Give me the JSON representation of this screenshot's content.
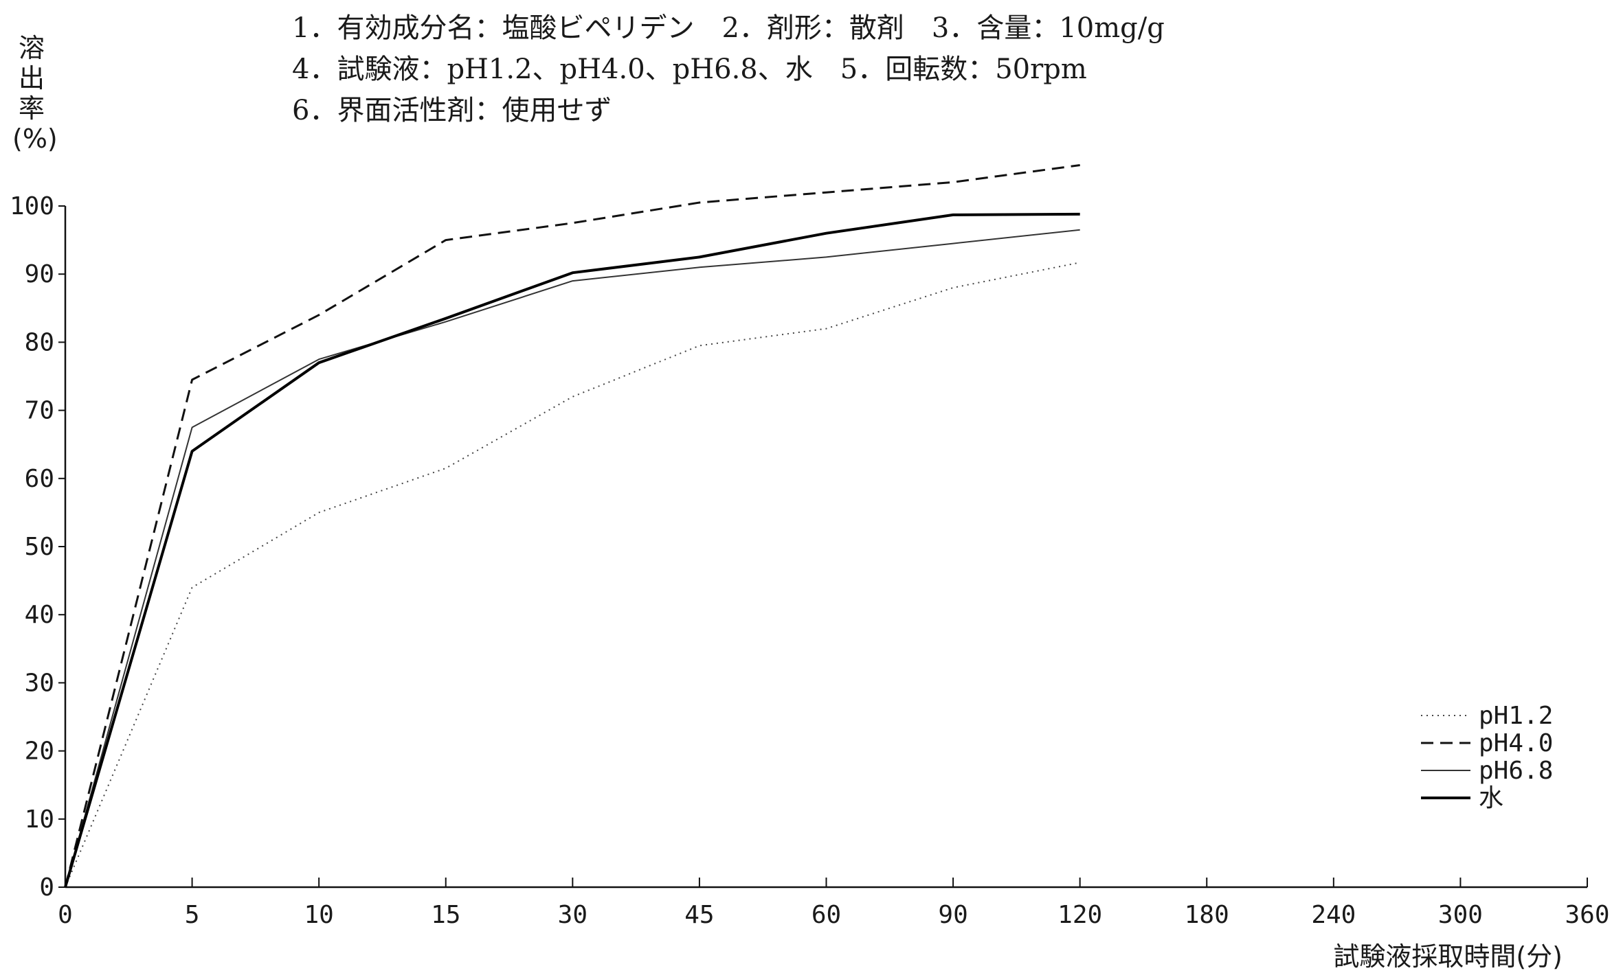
{
  "header": {
    "line1": "1．有効成分名：塩酸ビペリデン　2．剤形：散剤　3．含量：10mg/g",
    "line2": "4．試験液：pH1.2、pH4.0、pH6.8、水　5．回転数：50rpm",
    "line3": "6．界面活性剤：使用せず"
  },
  "chart_data": {
    "type": "line",
    "title": "",
    "ylabel": [
      "溶",
      "出",
      "率",
      "(%)"
    ],
    "xlabel": "試験液採取時間(分)",
    "x_categories": [
      "0",
      "5",
      "10",
      "15",
      "30",
      "45",
      "60",
      "90",
      "120",
      "180",
      "240",
      "300",
      "360"
    ],
    "y_ticks": [
      0,
      10,
      20,
      30,
      40,
      50,
      60,
      70,
      80,
      90,
      100
    ],
    "ylim": [
      0,
      100
    ],
    "grid": false,
    "legend_position": "bottom-right",
    "series": [
      {
        "name": "pH1.2",
        "style": "dotted",
        "stroke_color": "#444444",
        "values": [
          0,
          44,
          55,
          61.5,
          72,
          79.5,
          82,
          88,
          91.7
        ]
      },
      {
        "name": "pH4.0",
        "style": "dashed",
        "stroke_color": "#111111",
        "values": [
          0,
          74.5,
          84,
          95,
          97.5,
          100.5,
          102,
          103.5,
          106
        ]
      },
      {
        "name": "pH6.8",
        "style": "thin",
        "stroke_color": "#333333",
        "values": [
          0,
          67.5,
          77.5,
          83,
          89,
          91,
          92.5,
          94.5,
          96.5
        ]
      },
      {
        "name": "水",
        "style": "solid",
        "stroke_color": "#000000",
        "values": [
          0,
          64,
          77,
          83.5,
          90.2,
          92.5,
          96,
          98.7,
          98.8
        ]
      }
    ]
  }
}
